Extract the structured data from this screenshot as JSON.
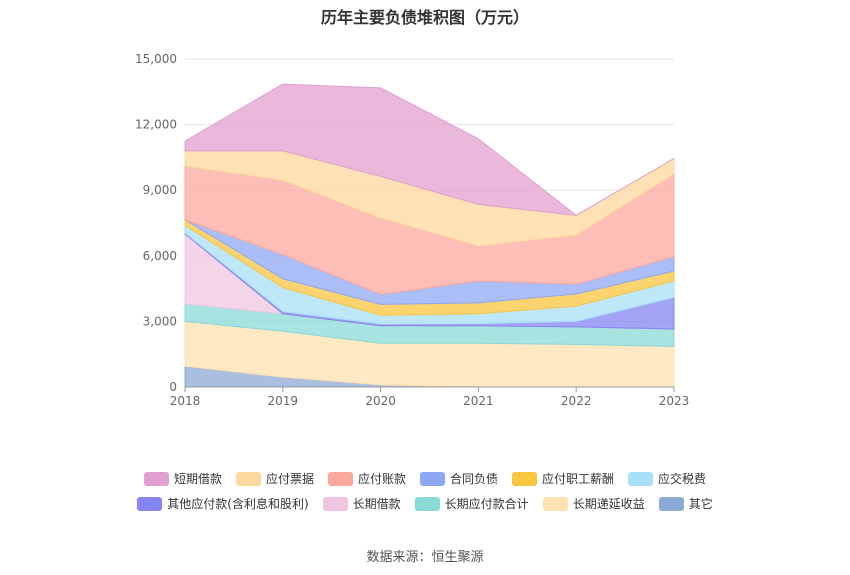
{
  "chart_data": {
    "type": "area",
    "title": "历年主要负债堆积图（万元）",
    "categories": [
      "2018",
      "2019",
      "2020",
      "2021",
      "2022",
      "2023"
    ],
    "ylim": [
      0,
      15000
    ],
    "yticks": [
      0,
      3000,
      6000,
      9000,
      12000,
      15000
    ],
    "ytick_labels": [
      "0",
      "3,000",
      "6,000",
      "9,000",
      "12,000",
      "15,000"
    ],
    "grid": true,
    "legend_position": "bottom",
    "series": [
      {
        "name": "其它",
        "color": "#8eaad6",
        "values": [
          950,
          450,
          100,
          0,
          0,
          0
        ]
      },
      {
        "name": "长期递延收益",
        "color": "#fde2b0",
        "values": [
          2050,
          2100,
          1900,
          2000,
          1950,
          1850
        ]
      },
      {
        "name": "长期应付款合计",
        "color": "#8ad9d6",
        "values": [
          800,
          800,
          800,
          800,
          800,
          800
        ]
      },
      {
        "name": "长期借款",
        "color": "#efc5e0",
        "values": [
          3200,
          0,
          0,
          0,
          0,
          0
        ]
      },
      {
        "name": "其他应付款(含利息和股利)",
        "color": "#8585f0",
        "values": [
          50,
          100,
          80,
          100,
          250,
          1450
        ]
      },
      {
        "name": "应交税费",
        "color": "#a8dff8",
        "values": [
          350,
          1100,
          400,
          450,
          700,
          750
        ]
      },
      {
        "name": "应付职工薪酬",
        "color": "#f9c640",
        "values": [
          250,
          400,
          500,
          500,
          550,
          450
        ]
      },
      {
        "name": "合同负债",
        "color": "#8fa8f5",
        "values": [
          0,
          1100,
          450,
          1000,
          450,
          650
        ]
      },
      {
        "name": "应付账款",
        "color": "#fba89e",
        "values": [
          2450,
          3400,
          3500,
          1600,
          2250,
          3800
        ]
      },
      {
        "name": "应付票据",
        "color": "#fdd89e",
        "values": [
          700,
          1350,
          1900,
          1900,
          900,
          700
        ]
      },
      {
        "name": "短期借款",
        "color": "#e1a0cd",
        "values": [
          450,
          3050,
          4050,
          3000,
          0,
          0
        ]
      }
    ],
    "legend_order": [
      "短期借款",
      "应付票据",
      "应付账款",
      "合同负债",
      "应付职工薪酬",
      "应交税费",
      "其他应付款(含利息和股利)",
      "长期借款",
      "长期应付款合计",
      "长期递延收益",
      "其它"
    ]
  },
  "source_text": "数据来源：恒生聚源"
}
